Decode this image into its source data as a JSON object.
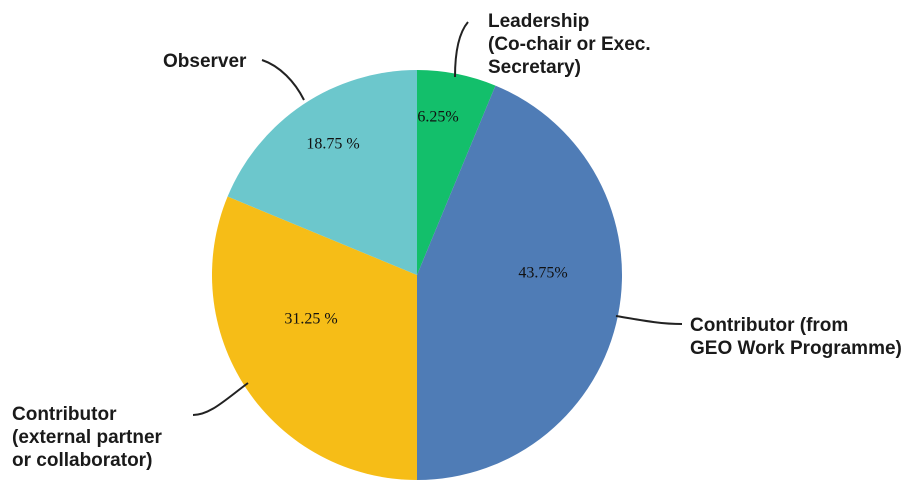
{
  "chart_data": {
    "type": "pie",
    "start_angle_deg": 0,
    "direction": "clockwise",
    "slices": [
      {
        "label": [
          "Leadership",
          "(Co-chair or Exec.",
          "Secretary)"
        ],
        "value": 6.25,
        "value_label": "6.25%",
        "color": "#13bf6b"
      },
      {
        "label": [
          "Contributor (from",
          "GEO Work Programme)"
        ],
        "value": 43.75,
        "value_label": "43.75%",
        "color": "#4f7cb6"
      },
      {
        "label": [
          "Contributor",
          "(external partner",
          "or collaborator)"
        ],
        "value": 31.25,
        "value_label": "31.25 %",
        "color": "#f6bd17"
      },
      {
        "label": [
          "Observer"
        ],
        "value": 18.75,
        "value_label": "18.75 %",
        "color": "#6cc7cc"
      }
    ]
  }
}
